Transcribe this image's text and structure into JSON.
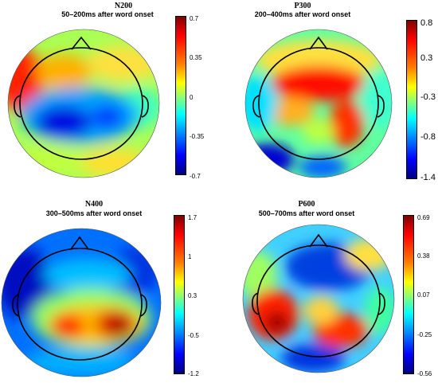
{
  "panels": [
    {
      "title": "N200",
      "subtitle": "50–200ms after word onset",
      "ticks": [
        "0.7",
        "0.35",
        "0",
        "-0.35",
        "-0.7"
      ]
    },
    {
      "title": "P300",
      "subtitle": "200–400ms after word onset",
      "ticks": [
        "0.8",
        "0.3",
        "-0.3",
        "-0.8",
        "-1.4"
      ]
    },
    {
      "title": "N400",
      "subtitle": "300–500ms after word onset",
      "ticks": [
        "1.7",
        "1",
        "0.3",
        "-0.5",
        "-1.2"
      ]
    },
    {
      "title": "P600",
      "subtitle": "500–700ms after word onset",
      "ticks": [
        "0.69",
        "0.38",
        "0.07",
        "-0.25",
        "-0.56"
      ]
    }
  ],
  "colors": {
    "dark_red": "#800000",
    "red": "#ff0000",
    "orange": "#ff8000",
    "yellow": "#ffff00",
    "green": "#80ff80",
    "cyan": "#00ffff",
    "blue": "#0000ff",
    "dark_blue": "#000080"
  }
}
